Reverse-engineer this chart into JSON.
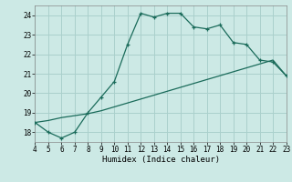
{
  "xlabel": "Humidex (Indice chaleur)",
  "xlim": [
    4,
    23
  ],
  "ylim": [
    17.5,
    24.5
  ],
  "yticks": [
    18,
    19,
    20,
    21,
    22,
    23,
    24
  ],
  "xticks": [
    4,
    5,
    6,
    7,
    8,
    9,
    10,
    11,
    12,
    13,
    14,
    15,
    16,
    17,
    18,
    19,
    20,
    21,
    22,
    23
  ],
  "bg_color": "#cce9e5",
  "line_color": "#1a6b5a",
  "grid_color": "#aad0cc",
  "curve_x": [
    4,
    5,
    6,
    7,
    8,
    9,
    10,
    11,
    12,
    13,
    14,
    15,
    16,
    17,
    18,
    19,
    20,
    21,
    22,
    23
  ],
  "curve_y": [
    18.5,
    18.0,
    17.7,
    18.0,
    19.0,
    19.8,
    20.6,
    22.5,
    24.1,
    23.9,
    24.1,
    24.1,
    23.4,
    23.3,
    23.5,
    22.6,
    22.5,
    21.7,
    21.6,
    20.9
  ],
  "line2_x": [
    4,
    5,
    6,
    7,
    8,
    9,
    10,
    11,
    12,
    13,
    14,
    15,
    16,
    17,
    18,
    19,
    20,
    21,
    22,
    23
  ],
  "line2_y": [
    18.5,
    18.6,
    18.75,
    18.85,
    18.95,
    19.1,
    19.3,
    19.5,
    19.7,
    19.9,
    20.1,
    20.3,
    20.5,
    20.7,
    20.9,
    21.1,
    21.3,
    21.5,
    21.7,
    20.9
  ]
}
